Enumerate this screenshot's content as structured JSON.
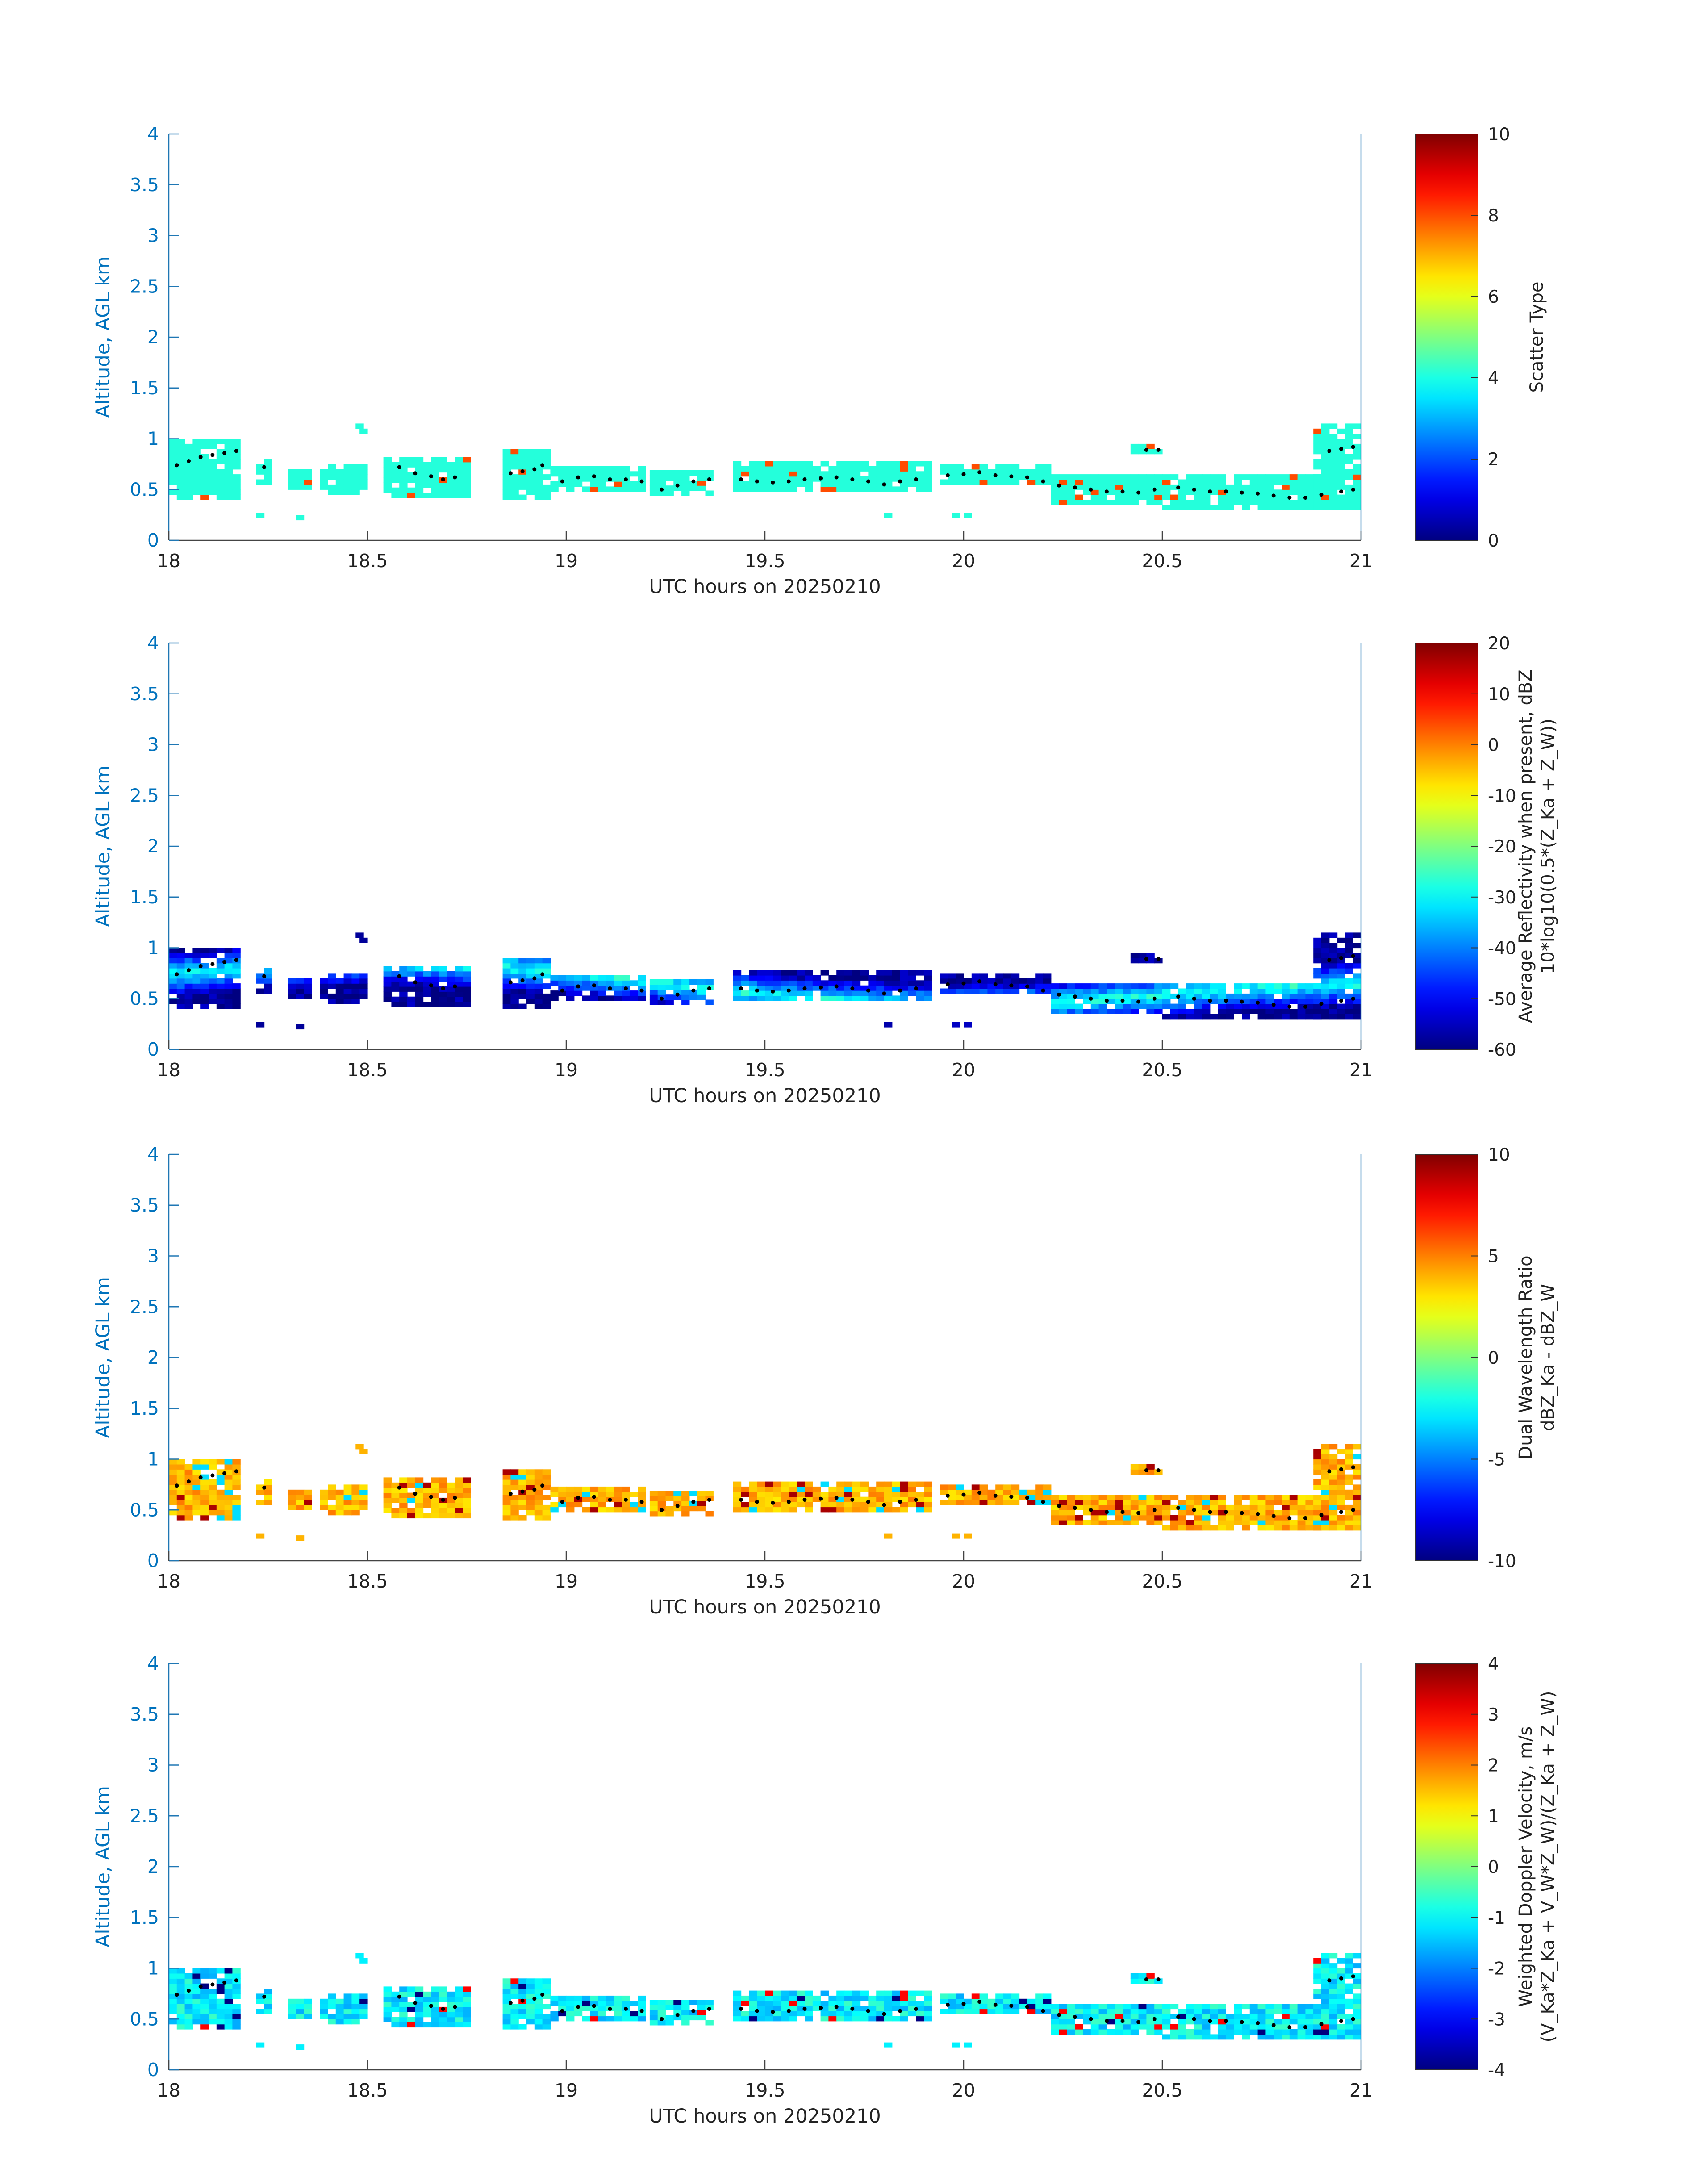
{
  "chart_data": [
    {
      "type": "heatmap",
      "title": "",
      "xlabel": "UTC hours on 20250210",
      "ylabel": "Altitude, AGL km",
      "xlim": [
        18,
        21
      ],
      "ylim": [
        0,
        4
      ],
      "xticks": [
        "18",
        "18.5",
        "19",
        "19.5",
        "20",
        "20.5",
        "21"
      ],
      "yticks": [
        "0",
        "0.5",
        "1",
        "1.5",
        "2",
        "2.5",
        "3",
        "3.5",
        "4"
      ],
      "colorbar": {
        "label_lines": [
          "Scatter Type"
        ],
        "range": [
          0,
          10
        ],
        "ticks": [
          "0",
          "2",
          "4",
          "6",
          "8",
          "10"
        ]
      },
      "field": "scatter_type"
    },
    {
      "type": "heatmap",
      "title": "",
      "xlabel": "UTC hours on 20250210",
      "ylabel": "Altitude, AGL km",
      "xlim": [
        18,
        21
      ],
      "ylim": [
        0,
        4
      ],
      "xticks": [
        "18",
        "18.5",
        "19",
        "19.5",
        "20",
        "20.5",
        "21"
      ],
      "yticks": [
        "0",
        "0.5",
        "1",
        "1.5",
        "2",
        "2.5",
        "3",
        "3.5",
        "4"
      ],
      "colorbar": {
        "label_lines": [
          "Average Reflectivity when present, dBZ",
          "10*log10(0.5*(Z_Ka + Z_W))"
        ],
        "range": [
          -60,
          20
        ],
        "ticks": [
          "-60",
          "-50",
          "-40",
          "-30",
          "-20",
          "-10",
          "0",
          "10",
          "20"
        ]
      },
      "field": "reflectivity"
    },
    {
      "type": "heatmap",
      "title": "",
      "xlabel": "UTC hours on 20250210",
      "ylabel": "Altitude, AGL km",
      "xlim": [
        18,
        21
      ],
      "ylim": [
        0,
        4
      ],
      "xticks": [
        "18",
        "18.5",
        "19",
        "19.5",
        "20",
        "20.5",
        "21"
      ],
      "yticks": [
        "0",
        "0.5",
        "1",
        "1.5",
        "2",
        "2.5",
        "3",
        "3.5",
        "4"
      ],
      "colorbar": {
        "label_lines": [
          "Dual Wavelength Ratio",
          "dBZ_Ka - dBZ_W"
        ],
        "range": [
          -10,
          10
        ],
        "ticks": [
          "-10",
          "-5",
          "0",
          "5",
          "10"
        ]
      },
      "field": "dwr"
    },
    {
      "type": "heatmap",
      "title": "",
      "xlabel": "UTC hours on 20250210",
      "ylabel": "Altitude, AGL km",
      "xlim": [
        18,
        21
      ],
      "ylim": [
        0,
        4
      ],
      "xticks": [
        "18",
        "18.5",
        "19",
        "19.5",
        "20",
        "20.5",
        "21"
      ],
      "yticks": [
        "0",
        "0.5",
        "1",
        "1.5",
        "2",
        "2.5",
        "3",
        "3.5",
        "4"
      ],
      "colorbar": {
        "label_lines": [
          "Weighted Doppler Velocity, m/s",
          "(V_Ka*Z_Ka + V_W*Z_W)/(Z_Ka + Z_W)"
        ],
        "range": [
          -4,
          4
        ],
        "ticks": [
          "-4",
          "-3",
          "-2",
          "-1",
          "0",
          "1",
          "2",
          "3",
          "4"
        ]
      },
      "field": "velocity"
    }
  ],
  "cloud_base_points": [
    [
      18.02,
      0.74
    ],
    [
      18.05,
      0.78
    ],
    [
      18.08,
      0.82
    ],
    [
      18.11,
      0.84
    ],
    [
      18.14,
      0.86
    ],
    [
      18.17,
      0.88
    ],
    [
      18.24,
      0.72
    ],
    [
      18.58,
      0.72
    ],
    [
      18.62,
      0.66
    ],
    [
      18.66,
      0.63
    ],
    [
      18.69,
      0.6
    ],
    [
      18.72,
      0.62
    ],
    [
      18.86,
      0.66
    ],
    [
      18.89,
      0.68
    ],
    [
      18.92,
      0.7
    ],
    [
      18.94,
      0.74
    ],
    [
      18.99,
      0.58
    ],
    [
      19.03,
      0.62
    ],
    [
      19.07,
      0.63
    ],
    [
      19.11,
      0.6
    ],
    [
      19.15,
      0.6
    ],
    [
      19.19,
      0.58
    ],
    [
      19.24,
      0.5
    ],
    [
      19.28,
      0.54
    ],
    [
      19.32,
      0.58
    ],
    [
      19.36,
      0.6
    ],
    [
      19.44,
      0.6
    ],
    [
      19.48,
      0.58
    ],
    [
      19.52,
      0.57
    ],
    [
      19.56,
      0.58
    ],
    [
      19.6,
      0.6
    ],
    [
      19.64,
      0.61
    ],
    [
      19.68,
      0.62
    ],
    [
      19.72,
      0.6
    ],
    [
      19.76,
      0.58
    ],
    [
      19.8,
      0.55
    ],
    [
      19.84,
      0.58
    ],
    [
      19.88,
      0.6
    ],
    [
      19.96,
      0.64
    ],
    [
      20.0,
      0.65
    ],
    [
      20.04,
      0.67
    ],
    [
      20.08,
      0.64
    ],
    [
      20.12,
      0.63
    ],
    [
      20.16,
      0.62
    ],
    [
      20.2,
      0.58
    ],
    [
      20.24,
      0.54
    ],
    [
      20.28,
      0.52
    ],
    [
      20.32,
      0.5
    ],
    [
      20.36,
      0.48
    ],
    [
      20.4,
      0.48
    ],
    [
      20.44,
      0.47
    ],
    [
      20.48,
      0.5
    ],
    [
      20.46,
      0.89
    ],
    [
      20.49,
      0.89
    ],
    [
      20.54,
      0.52
    ],
    [
      20.58,
      0.5
    ],
    [
      20.62,
      0.48
    ],
    [
      20.66,
      0.48
    ],
    [
      20.7,
      0.47
    ],
    [
      20.74,
      0.46
    ],
    [
      20.78,
      0.44
    ],
    [
      20.82,
      0.42
    ],
    [
      20.86,
      0.42
    ],
    [
      20.9,
      0.45
    ],
    [
      20.92,
      0.88
    ],
    [
      20.95,
      0.9
    ],
    [
      20.98,
      0.92
    ],
    [
      20.95,
      0.48
    ],
    [
      20.98,
      0.5
    ]
  ]
}
